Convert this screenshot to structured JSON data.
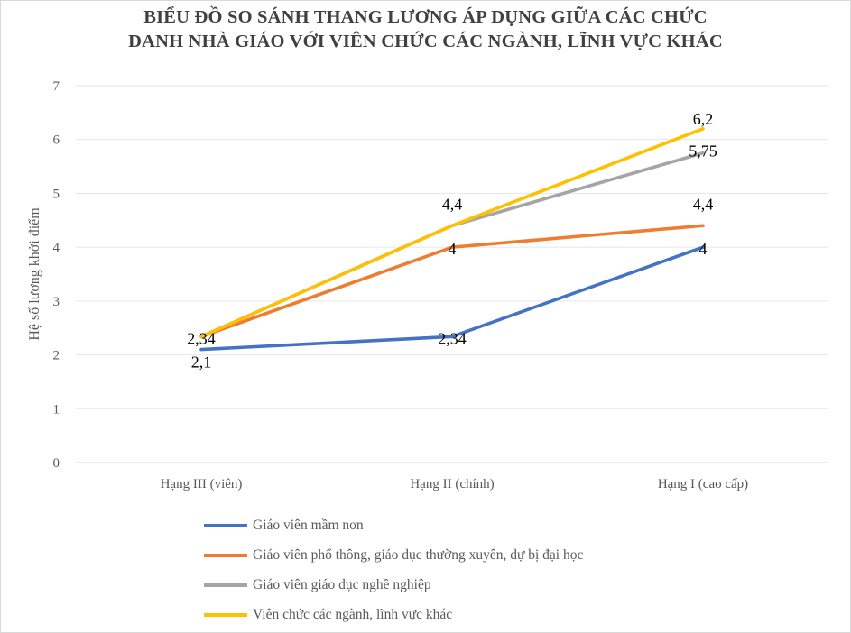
{
  "chart_data": {
    "type": "line",
    "title_lines": [
      "BIỂU ĐỒ SO SÁNH THANG LƯƠNG ÁP DỤNG GIỮA CÁC CHỨC",
      "DANH NHÀ GIÁO VỚI VIÊN CHỨC CÁC NGÀNH, LĨNH VỰC KHÁC"
    ],
    "xlabel": "",
    "ylabel": "Hệ số lương khởi điểm",
    "categories": [
      "Hạng III (viên)",
      "Hạng II (chính)",
      "Hạng I (cao cấp)"
    ],
    "ylim": [
      0,
      7
    ],
    "yticks": [
      "0",
      "1",
      "2",
      "3",
      "4",
      "5",
      "6",
      "7"
    ],
    "grid": true,
    "legend_position": "bottom",
    "series": [
      {
        "name": "Giáo viên mầm non",
        "color": "#4472c4",
        "values": [
          2.1,
          2.34,
          4
        ],
        "labels": [
          "2,1",
          "2,34",
          "4"
        ]
      },
      {
        "name": "Giáo viên phổ thông, giáo dục thường xuyên, dự bị đại học",
        "color": "#ed7d31",
        "values": [
          2.34,
          4,
          4.4
        ],
        "labels": [
          "",
          "4",
          "4,4"
        ]
      },
      {
        "name": "Giáo viên giáo dục nghề nghiệp",
        "color": "#a5a5a5",
        "values": [
          2.34,
          4.4,
          5.75
        ],
        "labels": [
          "",
          "",
          "5,75"
        ]
      },
      {
        "name": "Viên chức các ngành, lĩnh vực khác",
        "color": "#ffc000",
        "values": [
          2.34,
          4.4,
          6.2
        ],
        "labels": [
          "2,34",
          "4,4",
          "6,2"
        ]
      }
    ]
  }
}
